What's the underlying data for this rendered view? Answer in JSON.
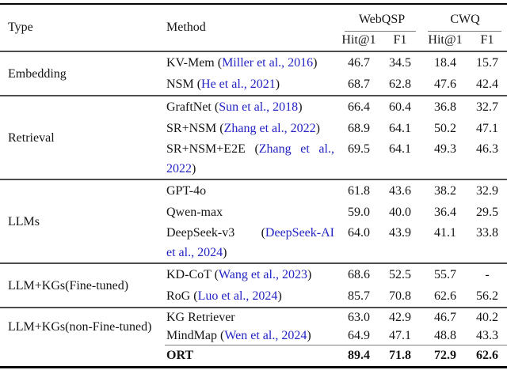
{
  "header": {
    "type": "Type",
    "method": "Method",
    "webqsp": "WebQSP",
    "cwq": "CWQ",
    "web_hit": "Hit@1",
    "web_f1": "F1",
    "cwq_hit": "Hit@1",
    "cwq_f1": "F1"
  },
  "symbols": {
    "open": " (",
    "open_tight": "(",
    "close": ")"
  },
  "colors": {
    "citation": "#2323C4",
    "text": "#151515",
    "rule_heavy": "#060606",
    "rule_mid": "#4d4d4d",
    "rule_light": "#7c7c7c"
  },
  "groups": [
    {
      "label": "Embedding",
      "rows": [
        {
          "m": "KV-Mem",
          "cite": "Miller et al., 2016",
          "v": [
            "46.7",
            "34.5",
            "18.4",
            "15.7"
          ]
        },
        {
          "m": "NSM",
          "cite": "He et al., 2021",
          "v": [
            "68.7",
            "62.8",
            "47.6",
            "42.4"
          ]
        }
      ]
    },
    {
      "label": "Retrieval",
      "rows": [
        {
          "m": "GraftNet",
          "cite": "Sun et al., 2018",
          "v": [
            "66.4",
            "60.4",
            "36.8",
            "32.7"
          ]
        },
        {
          "m": "SR+NSM",
          "cite": "Zhang et al., 2022",
          "v": [
            "68.9",
            "64.1",
            "50.2",
            "47.1"
          ]
        },
        {
          "m": "SR+NSM+E2E",
          "cw0": "Zhang",
          "cw1": "et",
          "cw2": "al.,",
          "l2": "2022",
          "v": [
            "69.5",
            "64.1",
            "49.3",
            "46.3"
          ]
        }
      ]
    },
    {
      "label": "LLMs",
      "rows": [
        {
          "m": "GPT-4o",
          "v": [
            "61.8",
            "43.6",
            "38.2",
            "32.9"
          ]
        },
        {
          "m": "Qwen-max",
          "v": [
            "59.0",
            "40.0",
            "36.4",
            "29.5"
          ]
        },
        {
          "m": "DeepSeek-v3",
          "cw0": "DeepSeek-AI",
          "l2": "et al., 2024",
          "v": [
            "64.0",
            "43.9",
            "41.1",
            "33.8"
          ]
        }
      ]
    },
    {
      "label": "LLM+KGs(Fine-tuned)",
      "rows": [
        {
          "m": "KD-CoT",
          "cite": "Wang et al., 2023",
          "v": [
            "68.6",
            "52.5",
            "55.7",
            "-"
          ]
        },
        {
          "m": "RoG",
          "cite": "Luo et al., 2024",
          "v": [
            "85.7",
            "70.8",
            "62.6",
            "56.2"
          ]
        }
      ]
    },
    {
      "label": "LLM+KGs(non-Fine-tuned)",
      "rows": [
        {
          "m": "KG Retriever",
          "v": [
            "63.0",
            "42.9",
            "46.7",
            "40.2"
          ]
        },
        {
          "m": "MindMap",
          "cite": "Wen et al., 2024",
          "v": [
            "64.9",
            "47.1",
            "48.8",
            "43.3"
          ]
        },
        {
          "m": "ORT",
          "v": [
            "89.4",
            "71.8",
            "72.9",
            "62.6"
          ]
        }
      ]
    }
  ]
}
